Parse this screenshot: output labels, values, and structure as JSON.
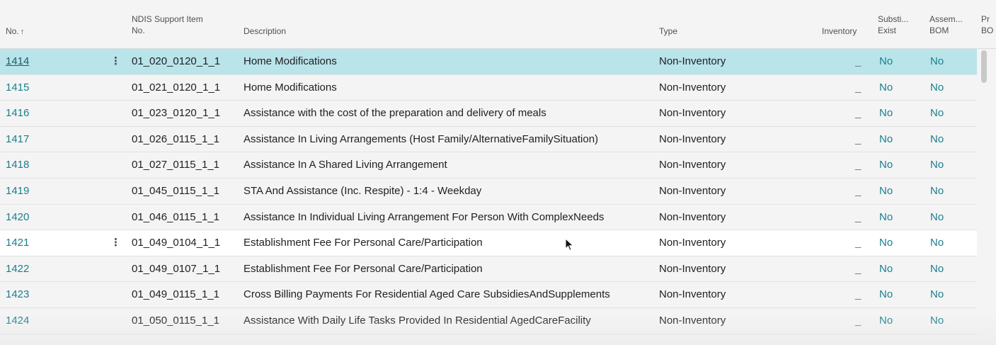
{
  "columns": {
    "no": "No.",
    "no_sort_icon": "↑",
    "ndis_line1": "NDIS Support Item",
    "ndis_line2": "No.",
    "description": "Description",
    "type": "Type",
    "inventory": "Inventory",
    "subst_line1": "Substi...",
    "subst_line2": "Exist",
    "bom_line1": "Assem...",
    "bom_line2": "BOM",
    "next_line1": "Pr",
    "next_line2": "BO"
  },
  "icons": {
    "row_menu": "⋮",
    "sort_arrow": "arrow-up-icon",
    "cursor": "mouse-pointer-icon"
  },
  "colors": {
    "link": "#1a7f8c",
    "selected_row": "#b8e4ea"
  },
  "rows": [
    {
      "no": "1414",
      "ndis": "01_020_0120_1_1",
      "description": "Home Modifications",
      "type": "Non-Inventory",
      "inventory": "_",
      "subst": "No",
      "bom": "No"
    },
    {
      "no": "1415",
      "ndis": "01_021_0120_1_1",
      "description": "Home Modifications",
      "type": "Non-Inventory",
      "inventory": "_",
      "subst": "No",
      "bom": "No"
    },
    {
      "no": "1416",
      "ndis": "01_023_0120_1_1",
      "description": "Assistance with the cost of the preparation and delivery of meals",
      "type": "Non-Inventory",
      "inventory": "_",
      "subst": "No",
      "bom": "No"
    },
    {
      "no": "1417",
      "ndis": "01_026_0115_1_1",
      "description": "Assistance In Living Arrangements (Host Family/AlternativeFamilySituation)",
      "type": "Non-Inventory",
      "inventory": "_",
      "subst": "No",
      "bom": "No"
    },
    {
      "no": "1418",
      "ndis": "01_027_0115_1_1",
      "description": "Assistance In A Shared Living Arrangement",
      "type": "Non-Inventory",
      "inventory": "_",
      "subst": "No",
      "bom": "No"
    },
    {
      "no": "1419",
      "ndis": "01_045_0115_1_1",
      "description": "STA And Assistance (Inc. Respite) - 1:4 - Weekday",
      "type": "Non-Inventory",
      "inventory": "_",
      "subst": "No",
      "bom": "No"
    },
    {
      "no": "1420",
      "ndis": "01_046_0115_1_1",
      "description": "Assistance In Individual Living Arrangement For Person With ComplexNeeds",
      "type": "Non-Inventory",
      "inventory": "_",
      "subst": "No",
      "bom": "No"
    },
    {
      "no": "1421",
      "ndis": "01_049_0104_1_1",
      "description": "Establishment Fee For Personal Care/Participation",
      "type": "Non-Inventory",
      "inventory": "_",
      "subst": "No",
      "bom": "No"
    },
    {
      "no": "1422",
      "ndis": "01_049_0107_1_1",
      "description": "Establishment Fee For Personal Care/Participation",
      "type": "Non-Inventory",
      "inventory": "_",
      "subst": "No",
      "bom": "No"
    },
    {
      "no": "1423",
      "ndis": "01_049_0115_1_1",
      "description": "Cross Billing Payments For Residential Aged Care SubsidiesAndSupplements",
      "type": "Non-Inventory",
      "inventory": "_",
      "subst": "No",
      "bom": "No"
    },
    {
      "no": "1424",
      "ndis": "01_050_0115_1_1",
      "description": "Assistance With Daily Life Tasks Provided In Residential AgedCareFacility",
      "type": "Non-Inventory",
      "inventory": "_",
      "subst": "No",
      "bom": "No"
    }
  ]
}
